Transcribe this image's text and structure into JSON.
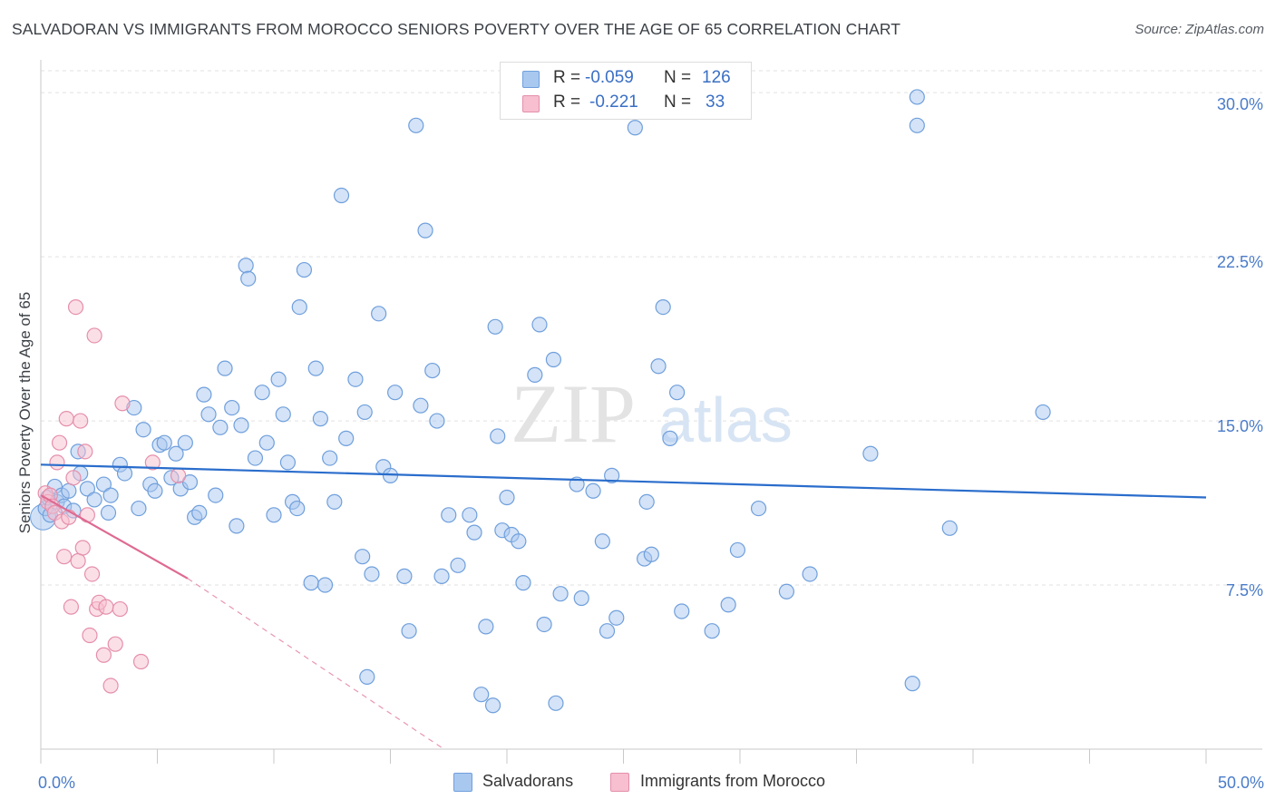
{
  "title": "SALVADORAN VS IMMIGRANTS FROM MOROCCO SENIORS POVERTY OVER THE AGE OF 65 CORRELATION CHART",
  "source": "Source: ZipAtlas.com",
  "watermark": {
    "zip": "ZIP",
    "atlas": "atlas"
  },
  "legend": {
    "rows": [
      {
        "r_label": "R =",
        "r_value": "-0.059",
        "n_label": "N =",
        "n_value": "126",
        "color": "#a9c8f0",
        "border": "#6f9fdc"
      },
      {
        "r_label": "R =",
        "r_value": "-0.221",
        "n_label": "N =",
        "n_value": "33",
        "color": "#f7bfd0",
        "border": "#e58fab"
      }
    ]
  },
  "bottom_legend": {
    "salvadorans": "Salvadorans",
    "morocco": "Immigrants from Morocco"
  },
  "colors": {
    "blue_fill": "#a9c8f0",
    "blue_stroke": "#6f9fdc",
    "blue_line": "#2a6dcc",
    "pink_fill": "#f7bfd0",
    "pink_stroke": "#e58fab",
    "pink_line": "#de6a92",
    "grid": "#e2e2e2",
    "tick_label": "#4a7cc9"
  },
  "chart_data": {
    "type": "scatter",
    "title": "SALVADORAN VS IMMIGRANTS FROM MOROCCO SENIORS POVERTY OVER THE AGE OF 65 CORRELATION CHART",
    "xlabel": "",
    "ylabel": "Seniors Poverty Over the Age of 65",
    "xlim": [
      0,
      50
    ],
    "ylim": [
      0,
      31
    ],
    "x_tick_labels": [
      {
        "value": 0,
        "label": "0.0%"
      },
      {
        "value": 50,
        "label": "50.0%"
      }
    ],
    "y_ticks": [
      {
        "value": 7.5,
        "label": "7.5%"
      },
      {
        "value": 15,
        "label": "15.0%"
      },
      {
        "value": 22.5,
        "label": "22.5%"
      },
      {
        "value": 30,
        "label": "30.0%"
      }
    ],
    "series": [
      {
        "name": "Salvadorans",
        "trend": {
          "x": [
            0,
            50
          ],
          "y": [
            13.0,
            11.5
          ]
        },
        "points": [
          [
            0.2,
            11.0
          ],
          [
            0.3,
            11.5
          ],
          [
            0.4,
            10.7
          ],
          [
            0.6,
            12.0
          ],
          [
            0.7,
            11.3
          ],
          [
            0.9,
            11.6
          ],
          [
            1.0,
            11.1
          ],
          [
            1.2,
            11.8
          ],
          [
            1.4,
            10.9
          ],
          [
            1.6,
            13.6
          ],
          [
            1.7,
            12.6
          ],
          [
            2.0,
            11.9
          ],
          [
            2.3,
            11.4
          ],
          [
            2.7,
            12.1
          ],
          [
            2.9,
            10.8
          ],
          [
            3.0,
            11.6
          ],
          [
            3.4,
            13.0
          ],
          [
            3.6,
            12.6
          ],
          [
            4.0,
            15.6
          ],
          [
            4.2,
            11.0
          ],
          [
            4.4,
            14.6
          ],
          [
            4.7,
            12.1
          ],
          [
            4.9,
            11.8
          ],
          [
            5.1,
            13.9
          ],
          [
            5.3,
            14.0
          ],
          [
            5.6,
            12.4
          ],
          [
            5.8,
            13.5
          ],
          [
            6.0,
            11.9
          ],
          [
            6.2,
            14.0
          ],
          [
            6.4,
            12.2
          ],
          [
            6.6,
            10.6
          ],
          [
            6.8,
            10.8
          ],
          [
            7.0,
            16.2
          ],
          [
            7.2,
            15.3
          ],
          [
            7.5,
            11.6
          ],
          [
            7.7,
            14.7
          ],
          [
            7.9,
            17.4
          ],
          [
            8.2,
            15.6
          ],
          [
            8.4,
            10.2
          ],
          [
            8.6,
            14.8
          ],
          [
            8.8,
            22.1
          ],
          [
            8.9,
            21.5
          ],
          [
            9.2,
            13.3
          ],
          [
            9.5,
            16.3
          ],
          [
            9.7,
            14.0
          ],
          [
            10.0,
            10.7
          ],
          [
            10.2,
            16.9
          ],
          [
            10.4,
            15.3
          ],
          [
            10.6,
            13.1
          ],
          [
            10.8,
            11.3
          ],
          [
            11.0,
            11.0
          ],
          [
            11.1,
            20.2
          ],
          [
            11.3,
            21.9
          ],
          [
            11.6,
            7.6
          ],
          [
            11.8,
            17.4
          ],
          [
            12.0,
            15.1
          ],
          [
            12.2,
            7.5
          ],
          [
            12.4,
            13.3
          ],
          [
            12.6,
            11.3
          ],
          [
            12.9,
            25.3
          ],
          [
            13.1,
            14.2
          ],
          [
            13.5,
            16.9
          ],
          [
            13.8,
            8.8
          ],
          [
            13.9,
            15.4
          ],
          [
            14.2,
            8.0
          ],
          [
            14.5,
            19.9
          ],
          [
            14.7,
            12.9
          ],
          [
            15.0,
            12.5
          ],
          [
            15.2,
            16.3
          ],
          [
            15.6,
            7.9
          ],
          [
            15.8,
            5.4
          ],
          [
            16.1,
            28.5
          ],
          [
            16.3,
            15.7
          ],
          [
            16.5,
            23.7
          ],
          [
            16.8,
            17.3
          ],
          [
            17.0,
            15.0
          ],
          [
            17.2,
            7.9
          ],
          [
            17.5,
            10.7
          ],
          [
            17.9,
            8.4
          ],
          [
            18.4,
            10.7
          ],
          [
            18.6,
            9.9
          ],
          [
            18.9,
            2.5
          ],
          [
            19.1,
            5.6
          ],
          [
            19.4,
            2.0
          ],
          [
            19.6,
            14.3
          ],
          [
            19.8,
            10.0
          ],
          [
            20.0,
            11.5
          ],
          [
            20.2,
            9.8
          ],
          [
            20.5,
            9.5
          ],
          [
            20.7,
            7.6
          ],
          [
            21.2,
            17.1
          ],
          [
            21.4,
            19.4
          ],
          [
            21.6,
            5.7
          ],
          [
            22.0,
            17.8
          ],
          [
            22.1,
            2.1
          ],
          [
            22.3,
            7.1
          ],
          [
            23.0,
            12.1
          ],
          [
            23.2,
            6.9
          ],
          [
            23.7,
            11.8
          ],
          [
            24.1,
            9.5
          ],
          [
            24.3,
            5.4
          ],
          [
            24.5,
            12.5
          ],
          [
            24.7,
            6.0
          ],
          [
            25.5,
            28.4
          ],
          [
            25.9,
            8.7
          ],
          [
            26.0,
            11.3
          ],
          [
            26.2,
            8.9
          ],
          [
            26.5,
            17.5
          ],
          [
            26.7,
            20.2
          ],
          [
            27.0,
            14.2
          ],
          [
            27.3,
            16.3
          ],
          [
            27.5,
            6.3
          ],
          [
            28.8,
            5.4
          ],
          [
            29.5,
            6.6
          ],
          [
            29.9,
            9.1
          ],
          [
            30.8,
            11.0
          ],
          [
            32.0,
            7.2
          ],
          [
            33.0,
            8.0
          ],
          [
            35.6,
            13.5
          ],
          [
            37.4,
            3.0
          ],
          [
            37.6,
            28.5
          ],
          [
            37.6,
            29.8
          ],
          [
            39.0,
            10.1
          ],
          [
            43.0,
            15.4
          ],
          [
            19.5,
            19.3
          ],
          [
            14.0,
            3.3
          ]
        ]
      },
      {
        "name": "Immigrants from Morocco",
        "trend": {
          "x": [
            0,
            6.3
          ],
          "y": [
            11.6,
            7.8
          ]
        },
        "trend_dashed": {
          "x": [
            6.3,
            17.3
          ],
          "y": [
            7.8,
            0
          ]
        },
        "points": [
          [
            0.2,
            11.7
          ],
          [
            0.3,
            11.3
          ],
          [
            0.4,
            11.6
          ],
          [
            0.5,
            11.1
          ],
          [
            0.6,
            10.8
          ],
          [
            0.7,
            13.1
          ],
          [
            0.8,
            14.0
          ],
          [
            0.9,
            10.4
          ],
          [
            1.0,
            8.8
          ],
          [
            1.1,
            15.1
          ],
          [
            1.2,
            10.6
          ],
          [
            1.3,
            6.5
          ],
          [
            1.4,
            12.4
          ],
          [
            1.5,
            20.2
          ],
          [
            1.6,
            8.6
          ],
          [
            1.7,
            15.0
          ],
          [
            1.8,
            9.2
          ],
          [
            1.9,
            13.6
          ],
          [
            2.0,
            10.7
          ],
          [
            2.1,
            5.2
          ],
          [
            2.2,
            8.0
          ],
          [
            2.3,
            18.9
          ],
          [
            2.4,
            6.4
          ],
          [
            2.5,
            6.7
          ],
          [
            2.7,
            4.3
          ],
          [
            2.8,
            6.5
          ],
          [
            3.0,
            2.9
          ],
          [
            3.2,
            4.8
          ],
          [
            3.4,
            6.4
          ],
          [
            3.5,
            15.8
          ],
          [
            4.3,
            4.0
          ],
          [
            4.8,
            13.1
          ],
          [
            5.9,
            12.5
          ]
        ]
      }
    ]
  }
}
